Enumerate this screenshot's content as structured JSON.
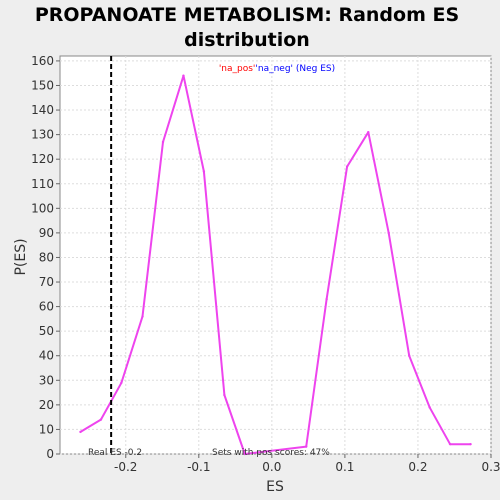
{
  "chart_data": {
    "type": "line",
    "title_line1": "PROPANOATE METABOLISM: Random ES",
    "title_line2": "distribution",
    "xlabel": "ES",
    "ylabel": "P(ES)",
    "xlim": [
      -0.29,
      0.3
    ],
    "ylim": [
      0,
      162
    ],
    "x_ticks": [
      -0.2,
      -0.1,
      0.0,
      0.1,
      0.2,
      0.3
    ],
    "x_tick_labels": [
      "-0.2",
      "-0.1",
      "0.0",
      "0.1",
      "0.2",
      "0.3"
    ],
    "y_ticks": [
      0,
      10,
      20,
      30,
      40,
      50,
      60,
      70,
      80,
      90,
      100,
      110,
      120,
      130,
      140,
      150,
      160
    ],
    "y_tick_labels": [
      "0",
      "10",
      "20",
      "30",
      "40",
      "50",
      "60",
      "70",
      "80",
      "90",
      "100",
      "110",
      "120",
      "130",
      "140",
      "150",
      "160"
    ],
    "grid": true,
    "legend": {
      "pos_label": "'na_pos'",
      "neg_label": "'na_neg' (Neg ES)",
      "pos_color": "#ff0000",
      "neg_color": "#0000ff",
      "placement": "top-center"
    },
    "series": [
      {
        "color": "#ee44ee",
        "x": [
          -0.262,
          -0.234,
          -0.206,
          -0.177,
          -0.149,
          -0.121,
          -0.093,
          -0.065,
          -0.037,
          0.047,
          0.075,
          0.103,
          0.132,
          0.16,
          0.188,
          0.216,
          0.244,
          0.272
        ],
        "y": [
          9,
          14,
          29,
          56,
          127,
          154,
          115,
          24,
          0,
          3,
          63,
          117,
          131,
          90,
          40,
          19,
          4,
          4
        ]
      }
    ],
    "real_es": {
      "value": -0.22,
      "label": "Real ES -0.2",
      "style": "dashed",
      "color": "#000000"
    },
    "pos_scores_note": "Sets with pos scores: 47%"
  }
}
